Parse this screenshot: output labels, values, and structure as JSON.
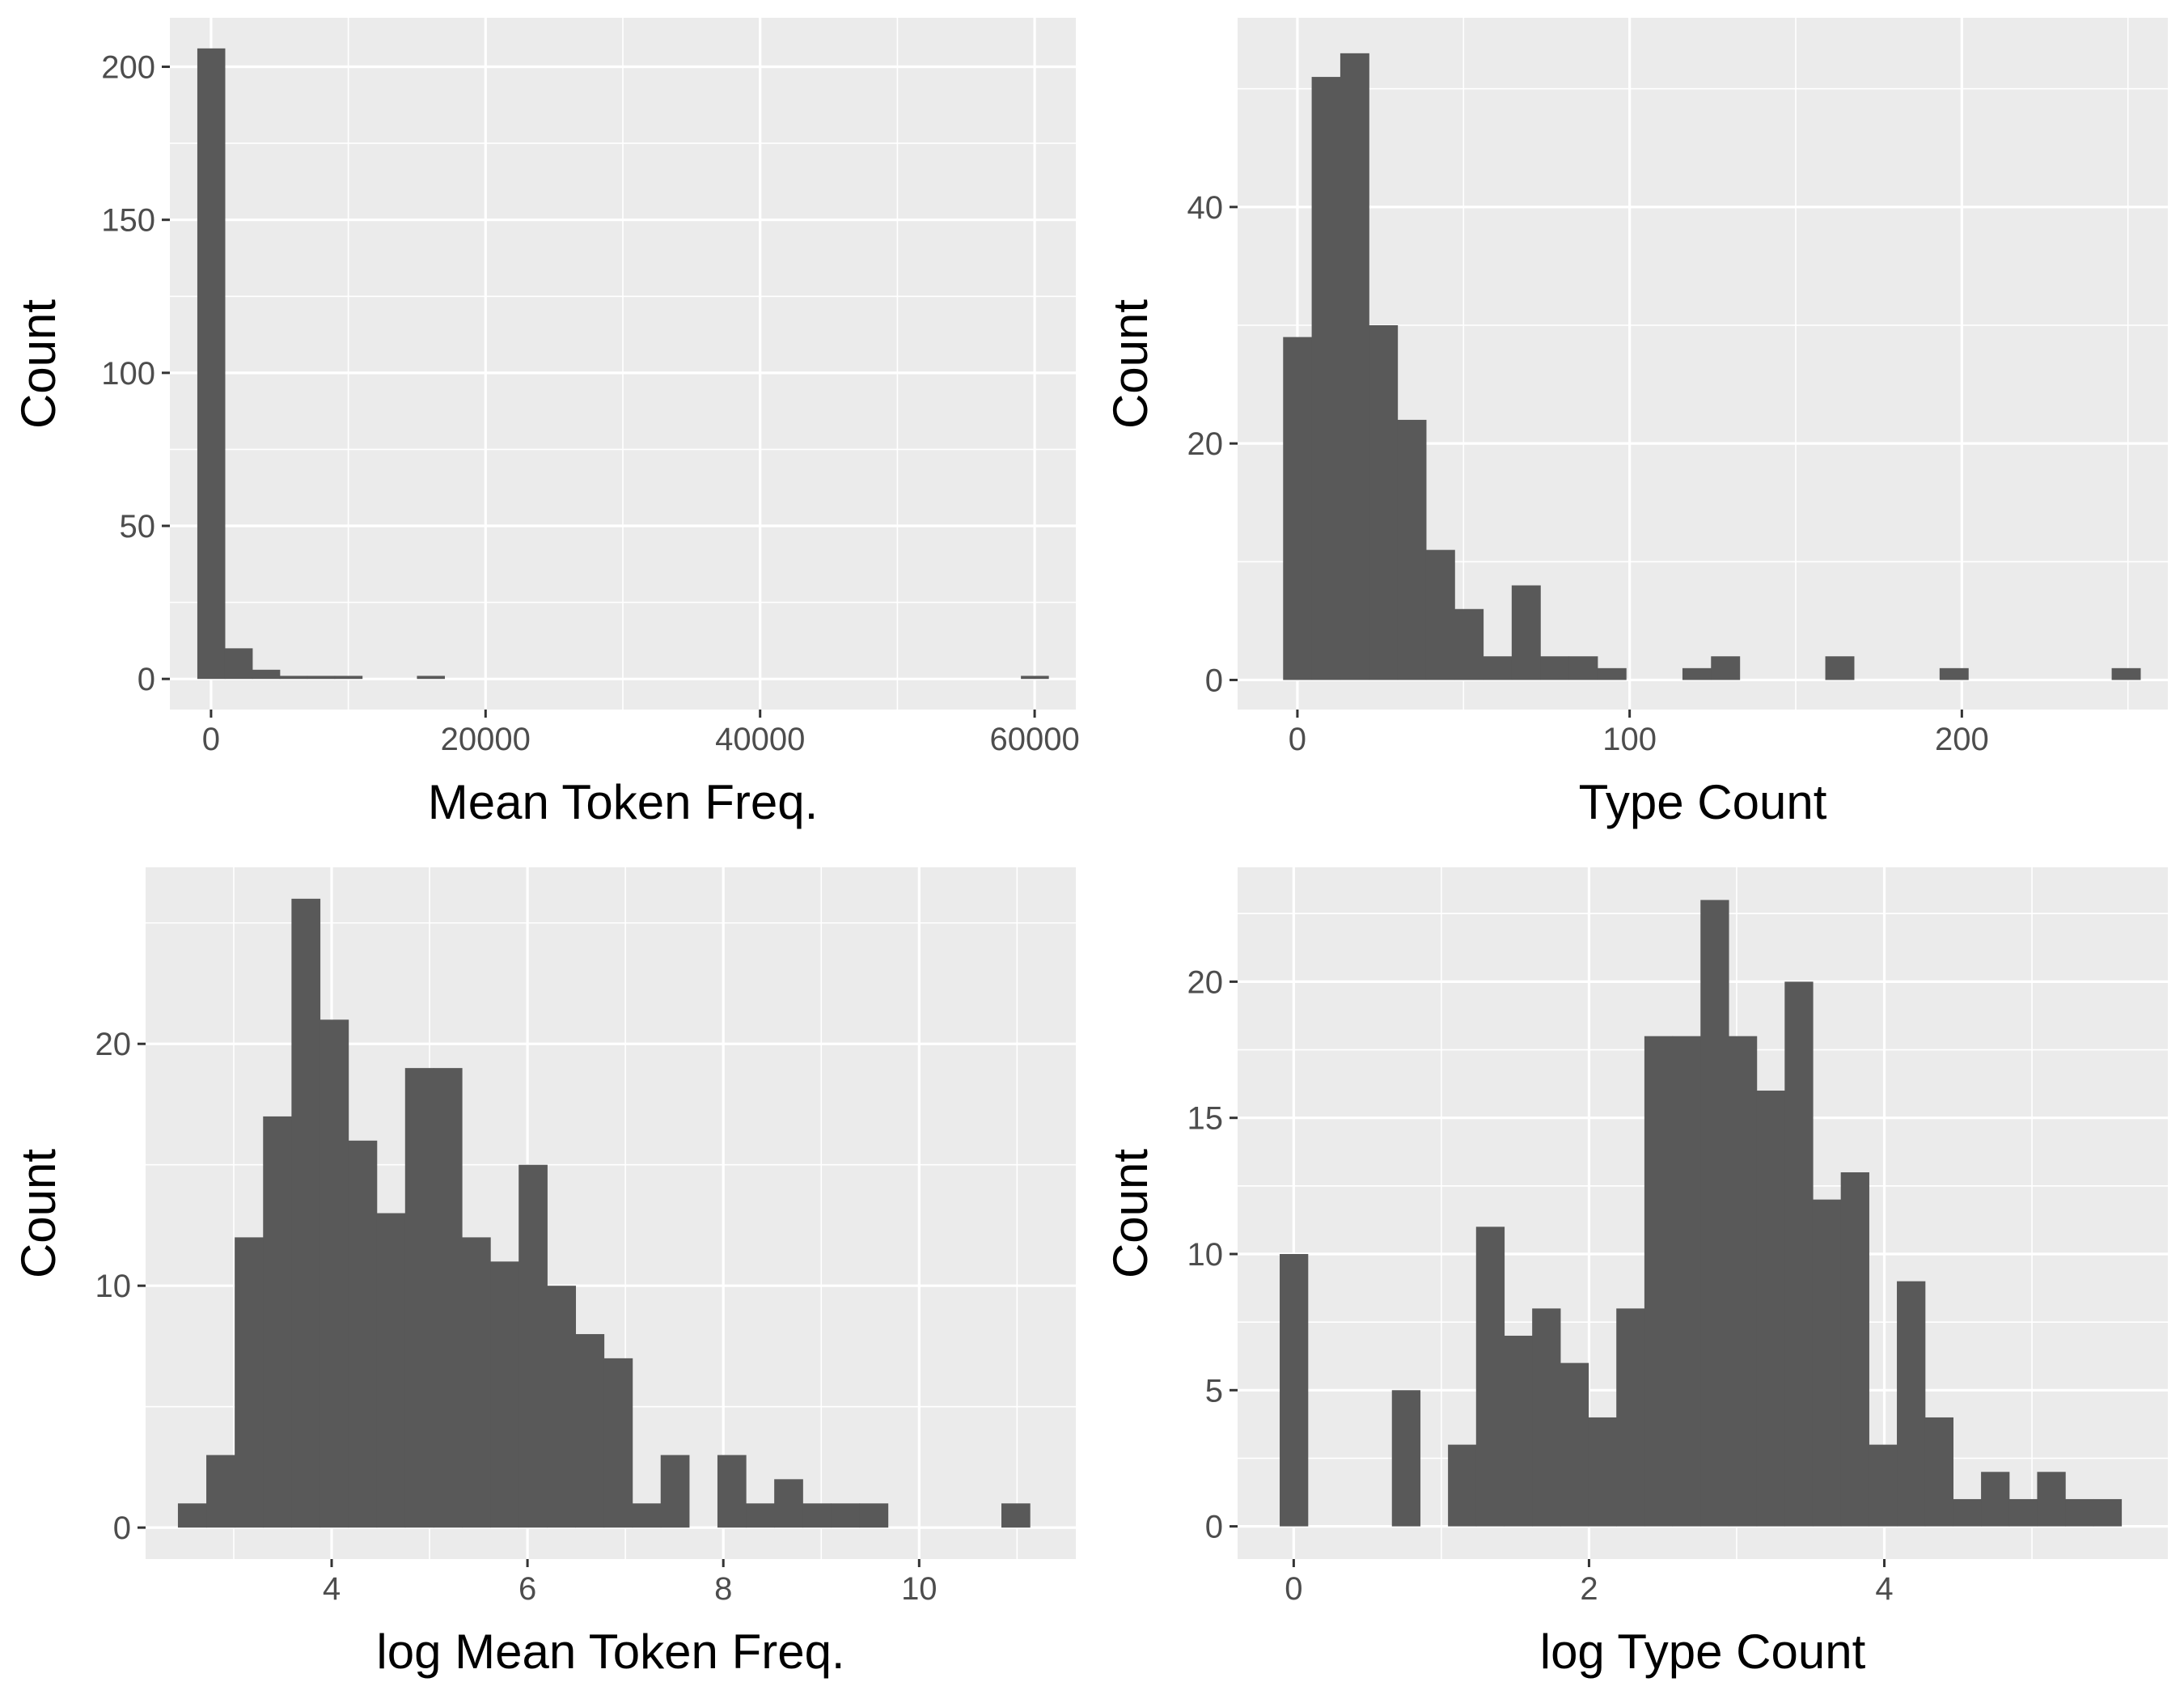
{
  "colors": {
    "panel_bg": "#EBEBEB",
    "grid": "#FFFFFF",
    "bar": "#595959",
    "tick_text": "#4D4D4D",
    "tick_mark": "#333333",
    "title_text": "#000000"
  },
  "chart_data": [
    {
      "type": "bar",
      "subtype": "histogram",
      "xlabel": "Mean Token Freq.",
      "ylabel": "Count",
      "xlim": [
        -3000,
        63000
      ],
      "ylim": [
        -10,
        216
      ],
      "x_ticks": [
        0,
        20000,
        40000,
        60000
      ],
      "y_ticks": [
        0,
        50,
        100,
        150,
        200
      ],
      "binwidth": 2000,
      "bin_left_edges": [
        -1000,
        1000,
        3000,
        5000,
        7000,
        9000,
        15000,
        59000
      ],
      "values": [
        206,
        10,
        3,
        1,
        1,
        1,
        1,
        1
      ],
      "grid": true
    },
    {
      "type": "bar",
      "subtype": "histogram",
      "xlabel": "Type Count",
      "ylabel": "Count",
      "xlim": [
        -18,
        262
      ],
      "ylim": [
        -2.5,
        56
      ],
      "x_ticks": [
        0,
        100,
        200
      ],
      "y_ticks": [
        0,
        20,
        40
      ],
      "binwidth": 8.6,
      "bin_left_edges": [
        -4.3,
        4.3,
        12.9,
        21.5,
        30.1,
        38.7,
        47.3,
        55.9,
        64.5,
        73.1,
        81.7,
        90.3,
        115.9,
        124.5,
        158.9,
        193.3,
        245.1
      ],
      "values": [
        29,
        51,
        53,
        30,
        22,
        11,
        6,
        2,
        8,
        2,
        2,
        1,
        1,
        2,
        2,
        1,
        1
      ],
      "grid": true
    },
    {
      "type": "bar",
      "subtype": "histogram",
      "xlabel": "log Mean Token Freq.",
      "ylabel": "Count",
      "xlim": [
        2.1,
        11.6
      ],
      "ylim": [
        -1.3,
        27.3
      ],
      "x_ticks": [
        4,
        6,
        8,
        10
      ],
      "y_ticks": [
        0,
        10,
        20
      ],
      "binwidth": 0.29,
      "bin_left_edges": [
        2.43,
        2.72,
        3.01,
        3.3,
        3.59,
        3.88,
        4.17,
        4.46,
        4.75,
        5.04,
        5.33,
        5.62,
        5.91,
        6.2,
        6.49,
        6.78,
        7.07,
        7.36,
        7.94,
        8.23,
        8.52,
        8.81,
        9.1,
        9.39,
        10.84
      ],
      "values": [
        1,
        3,
        12,
        17,
        26,
        21,
        16,
        13,
        19,
        19,
        12,
        11,
        15,
        10,
        8,
        7,
        1,
        3,
        3,
        1,
        2,
        1,
        1,
        1,
        1
      ],
      "grid": true
    },
    {
      "type": "bar",
      "subtype": "histogram",
      "xlabel": "log Type Count",
      "ylabel": "Count",
      "xlim": [
        -0.38,
        5.92
      ],
      "ylim": [
        -1.2,
        24.2
      ],
      "x_ticks": [
        0,
        2,
        4
      ],
      "y_ticks": [
        0,
        5,
        10,
        15,
        20
      ],
      "binwidth": 0.19,
      "bin_left_edges": [
        -0.095,
        0.665,
        1.045,
        1.235,
        1.425,
        1.615,
        1.805,
        1.995,
        2.185,
        2.375,
        2.565,
        2.755,
        2.945,
        3.135,
        3.325,
        3.515,
        3.705,
        3.895,
        4.085,
        4.275,
        4.465,
        4.655,
        4.845,
        5.035,
        5.225,
        5.415
      ],
      "values": [
        10,
        5,
        3,
        11,
        7,
        8,
        6,
        4,
        8,
        18,
        18,
        23,
        18,
        16,
        20,
        12,
        13,
        3,
        9,
        4,
        1,
        2,
        1,
        2,
        1,
        1
      ],
      "grid": true
    }
  ]
}
